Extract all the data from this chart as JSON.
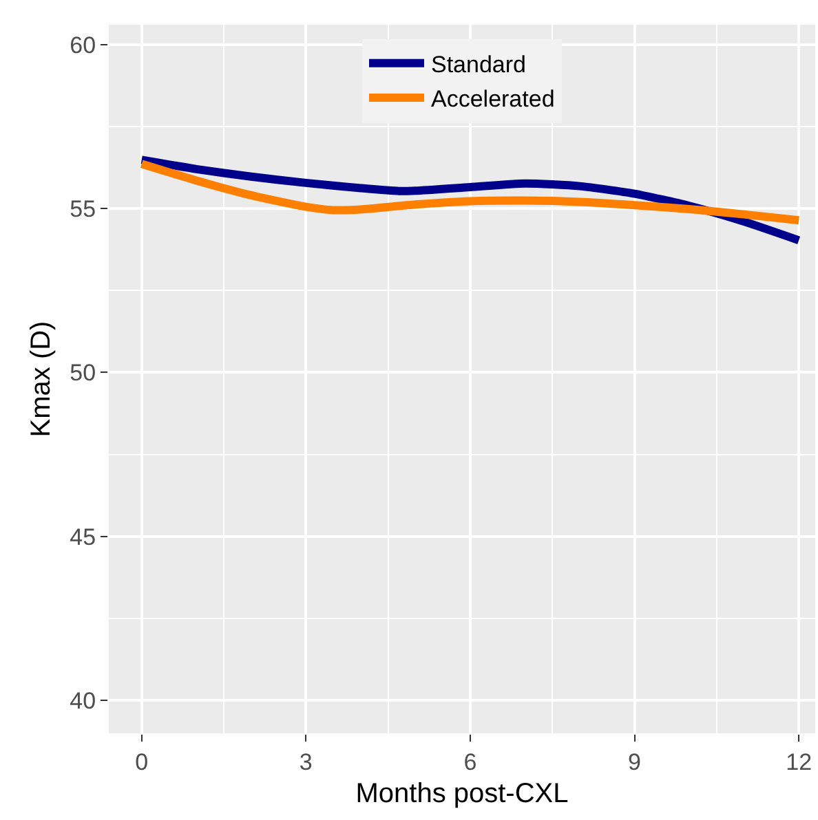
{
  "chart_data": {
    "type": "line",
    "xlabel": "Months post-CXL",
    "ylabel": "Kmax (D)",
    "xlim": [
      -0.6,
      12.3
    ],
    "xticks": [
      0,
      3,
      6,
      9,
      12
    ],
    "ylim": [
      39,
      60.6
    ],
    "yticks": [
      40,
      45,
      50,
      55,
      60
    ],
    "grid": true,
    "legend": "top",
    "line_style": "solid",
    "marker": "none",
    "series": [
      {
        "name": "Standard",
        "color": "#00008b",
        "x": [
          0,
          1,
          2,
          3,
          4,
          4.7,
          5,
          6,
          7,
          8,
          9,
          10,
          11,
          12
        ],
        "values": [
          56.48,
          56.2,
          55.97,
          55.78,
          55.62,
          55.53,
          55.54,
          55.65,
          55.76,
          55.68,
          55.45,
          55.08,
          54.6,
          54.03
        ]
      },
      {
        "name": "Accelerated",
        "color": "#ff7f00",
        "x": [
          0,
          1,
          2,
          3,
          3.5,
          4,
          5,
          6,
          7,
          8,
          9,
          10,
          11,
          12
        ],
        "values": [
          56.36,
          55.85,
          55.4,
          55.05,
          54.95,
          54.97,
          55.12,
          55.22,
          55.24,
          55.2,
          55.1,
          54.98,
          54.82,
          54.64
        ]
      }
    ]
  }
}
